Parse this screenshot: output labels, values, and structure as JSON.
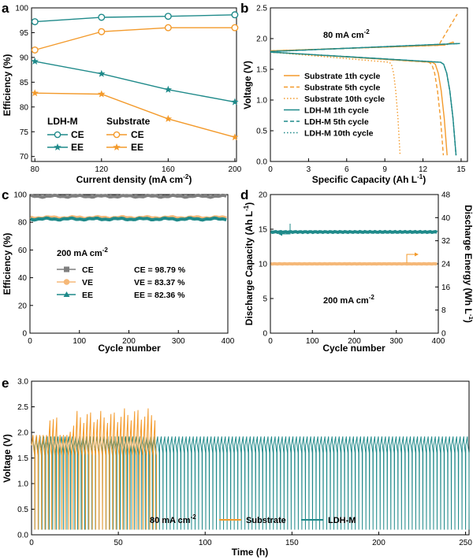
{
  "colors": {
    "ldh": "#1f8a8a",
    "substrate": "#f39a2b",
    "ce_gray": "#7f7f7f",
    "ve_light": "#f5b878"
  },
  "chart_data": [
    {
      "panel": "a",
      "type": "line",
      "xlabel": "Current density (mA cm⁻²)",
      "ylabel": "Efficiency (%)",
      "xlim": [
        78,
        201
      ],
      "ylim": [
        69,
        100
      ],
      "x_ticks": [
        80,
        120,
        160,
        200
      ],
      "y_ticks": [
        70,
        75,
        80,
        85,
        90,
        95,
        100
      ],
      "x": [
        80,
        120,
        160,
        200
      ],
      "series": [
        {
          "name": "CE",
          "group": "LDH-M",
          "marker": "circle",
          "values": [
            97.2,
            98.1,
            98.3,
            98.6
          ]
        },
        {
          "name": "EE",
          "group": "LDH-M",
          "marker": "star",
          "values": [
            89.2,
            86.7,
            83.5,
            81.0
          ]
        },
        {
          "name": "CE",
          "group": "Substrate",
          "marker": "circle",
          "values": [
            91.5,
            95.2,
            96.0,
            96.0
          ]
        },
        {
          "name": "EE",
          "group": "Substrate",
          "marker": "star",
          "values": [
            82.8,
            82.6,
            77.6,
            73.9
          ]
        }
      ],
      "legend_titles": [
        "LDH-M",
        "Substrate"
      ]
    },
    {
      "panel": "b",
      "type": "line",
      "xlabel": "Specific Capacity (Ah L⁻¹)",
      "ylabel": "Voltage (V)",
      "annotation": "80 mA cm⁻²",
      "xlim": [
        0,
        15.5
      ],
      "ylim": [
        0,
        2.5
      ],
      "x_ticks": [
        0,
        3,
        6,
        9,
        12,
        15
      ],
      "y_ticks": [
        0.0,
        0.5,
        1.0,
        1.5,
        2.0,
        2.5
      ],
      "series": [
        {
          "name": "Substrate 1th cycle",
          "charge_capacity": 14.4,
          "discharge_capacity": 13.9
        },
        {
          "name": "Substrate 5th cycle",
          "charge_capacity": 14.7,
          "discharge_capacity": 13.6
        },
        {
          "name": "Substrate 10th cycle",
          "charge_capacity": 14.5,
          "discharge_capacity": 10.2
        },
        {
          "name": "LDH-M 1th cycle",
          "charge_capacity": 14.9,
          "discharge_capacity": 14.6
        },
        {
          "name": "LDH-M 5th cycle",
          "charge_capacity": 14.9,
          "discharge_capacity": 14.6
        },
        {
          "name": "LDH-M 10th cycle",
          "charge_capacity": 14.9,
          "discharge_capacity": 14.6
        }
      ]
    },
    {
      "panel": "c",
      "type": "line",
      "xlabel": "Cycle number",
      "ylabel": "Efficiency (%)",
      "annotation": "200 mA cm⁻²",
      "xlim": [
        0,
        400
      ],
      "ylim": [
        0,
        100
      ],
      "x_ticks": [
        0,
        100,
        200,
        300,
        400
      ],
      "y_ticks": [
        0,
        20,
        40,
        60,
        80,
        100
      ],
      "series": [
        {
          "name": "CE",
          "value": 98.79,
          "label": "CE = 98.79 %"
        },
        {
          "name": "VE",
          "value": 83.37,
          "label": "VE = 83.37 %"
        },
        {
          "name": "EE",
          "value": 82.36,
          "label": "EE = 82.36 %"
        }
      ]
    },
    {
      "panel": "d",
      "type": "line",
      "xlabel": "Cycle number",
      "ylabel": "Discharge Capacity (Ah L⁻¹)",
      "ylabel_right": "Discharge Energy (Wh L⁻¹)",
      "annotation": "200 mA cm⁻²",
      "xlim": [
        0,
        400
      ],
      "ylim": [
        0,
        20
      ],
      "ylim_right": [
        0,
        48
      ],
      "x_ticks": [
        0,
        100,
        200,
        300,
        400
      ],
      "y_ticks": [
        0,
        5,
        10,
        15,
        20
      ],
      "y_ticks_right": [
        0,
        8,
        16,
        24,
        32,
        40,
        48
      ],
      "series": [
        {
          "name": "LDH-M discharge capacity",
          "axis": "left",
          "value": 14.6
        },
        {
          "name": "Substrate discharge energy",
          "axis": "right",
          "value": 24.0
        }
      ]
    },
    {
      "panel": "e",
      "type": "line",
      "xlabel": "Time (h)",
      "ylabel": "Voltage (V)",
      "annotation": "80 mA cm⁻²",
      "xlim": [
        0,
        252
      ],
      "ylim": [
        0,
        3
      ],
      "x_ticks": [
        0,
        50,
        100,
        150,
        200,
        250
      ],
      "y_ticks": [
        0.0,
        0.5,
        1.0,
        1.5,
        2.0,
        2.5,
        3.0
      ],
      "series": [
        {
          "name": "Substrate",
          "t_end": 71,
          "v_charge_max": 2.45,
          "v_min": 0.1
        },
        {
          "name": "LDH-M",
          "t_end": 252,
          "v_charge_max": 1.92,
          "v_min": 0.1
        }
      ]
    }
  ],
  "labels": {
    "a": {
      "panel": "a",
      "xlabel": "Current density (mA cm",
      "xlabel_sup": "-2",
      "xlabel_end": ")",
      "ylabel": "Efficiency (%)",
      "legend_ldh": "LDH-M",
      "legend_sub": "Substrate",
      "ce": "CE",
      "ee": "EE"
    },
    "b": {
      "panel": "b",
      "xlabel": "Specific Capacity (Ah L",
      "xlabel_sup": "-1",
      "xlabel_end": ")",
      "ylabel": "Voltage (V)",
      "annotation": "80 mA cm",
      "annotation_sup": "-2",
      "legend": [
        "Substrate 1th cycle",
        "Substrate 5th cycle",
        "Substrate 10th cycle",
        "LDH-M 1th cycle",
        "LDH-M 5th cycle",
        "LDH-M 10th cycle"
      ]
    },
    "c": {
      "panel": "c",
      "xlabel": "Cycle number",
      "ylabel": "Efficiency (%)",
      "annotation": "200 mA cm",
      "annotation_sup": "-2",
      "legend": [
        "CE",
        "VE",
        "EE"
      ],
      "values": [
        "CE = 98.79 %",
        "VE = 83.37 %",
        "EE = 82.36 %"
      ]
    },
    "d": {
      "panel": "d",
      "xlabel": "Cycle number",
      "ylabel": "Discharge Capacity (Ah L",
      "ylabel_sup": "-1",
      "ylabel_end": ")",
      "ylabel_right": "Discharge Energy (Wh L",
      "ylabel_right_sup": "-1",
      "ylabel_right_end": ")",
      "annotation": "200 mA cm",
      "annotation_sup": "-2"
    },
    "e": {
      "panel": "e",
      "xlabel": "Time (h)",
      "ylabel": "Voltage (V)",
      "annotation": "80 mA cm",
      "annotation_sup": "-2",
      "legend": [
        "Substrate",
        "LDH-M"
      ]
    }
  }
}
